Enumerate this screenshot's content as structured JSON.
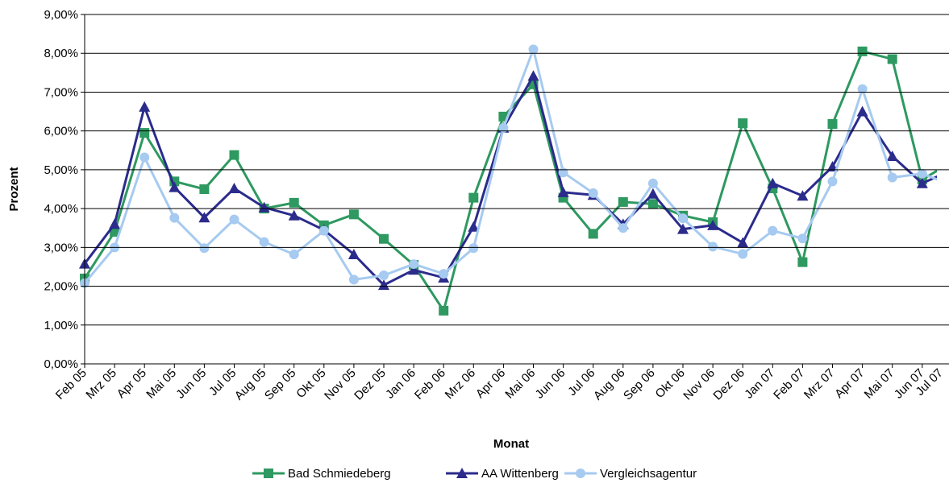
{
  "chart_data": {
    "type": "line",
    "x_label": "Monat",
    "y_label": "Prozent",
    "categories": [
      "Feb 05",
      "Mrz 05",
      "Apr 05",
      "Mai 05",
      "Jun 05",
      "Jul 05",
      "Aug 05",
      "Sep 05",
      "Okt 05",
      "Nov 05",
      "Dez 05",
      "Jan 06",
      "Feb 06",
      "Mrz 06",
      "Apr 06",
      "Mai 06",
      "Jun 06",
      "Jul 06",
      "Aug 06",
      "Sep 06",
      "Okt 06",
      "Nov 06",
      "Dez 06",
      "Jan 07",
      "Feb 07",
      "Mrz 07",
      "Apr 07",
      "Mai 07",
      "Jun 07",
      "Jul 07"
    ],
    "series": [
      {
        "name": "Bad Schmiedeberg",
        "color": "#2e9960",
        "marker": "square",
        "values": [
          2.2,
          3.4,
          5.95,
          4.7,
          4.5,
          5.38,
          4.0,
          4.15,
          3.57,
          3.85,
          3.22,
          2.55,
          1.37,
          4.28,
          6.37,
          7.2,
          4.28,
          3.35,
          4.17,
          4.12,
          3.82,
          3.65,
          6.2,
          4.52,
          2.62,
          6.18,
          8.05,
          7.85,
          4.75,
          5.2
        ]
      },
      {
        "name": "AA Wittenberg",
        "color": "#2b2b8c",
        "marker": "triangle",
        "values": [
          2.58,
          3.6,
          6.62,
          4.55,
          3.77,
          4.52,
          4.03,
          3.82,
          3.45,
          2.82,
          2.03,
          2.42,
          2.22,
          3.53,
          6.08,
          7.42,
          4.42,
          4.35,
          3.6,
          4.38,
          3.47,
          3.57,
          3.12,
          4.65,
          4.33,
          5.08,
          6.5,
          5.35,
          4.65,
          5.0
        ]
      },
      {
        "name": "Vergleichsagentur",
        "color": "#a6caf0",
        "marker": "circle",
        "values": [
          2.08,
          3.0,
          5.32,
          3.76,
          2.98,
          3.72,
          3.14,
          2.82,
          3.43,
          2.17,
          2.28,
          2.57,
          2.32,
          2.98,
          6.08,
          8.1,
          4.93,
          4.4,
          3.5,
          4.65,
          3.75,
          3.02,
          2.83,
          3.43,
          3.23,
          4.7,
          7.08,
          4.8,
          4.9,
          4.6
        ]
      }
    ],
    "ylim": [
      0,
      9
    ],
    "yticks": [
      {
        "value": 0,
        "label": "0,00%"
      },
      {
        "value": 1,
        "label": "1,00%"
      },
      {
        "value": 2,
        "label": "2,00%"
      },
      {
        "value": 3,
        "label": "3,00%"
      },
      {
        "value": 4,
        "label": "4,00%"
      },
      {
        "value": 5,
        "label": "5,00%"
      },
      {
        "value": 6,
        "label": "6,00%"
      },
      {
        "value": 7,
        "label": "7,00%"
      },
      {
        "value": 8,
        "label": "8,00%"
      },
      {
        "value": 9,
        "label": "9,00%"
      }
    ],
    "grid": true,
    "legend": "bottom"
  }
}
